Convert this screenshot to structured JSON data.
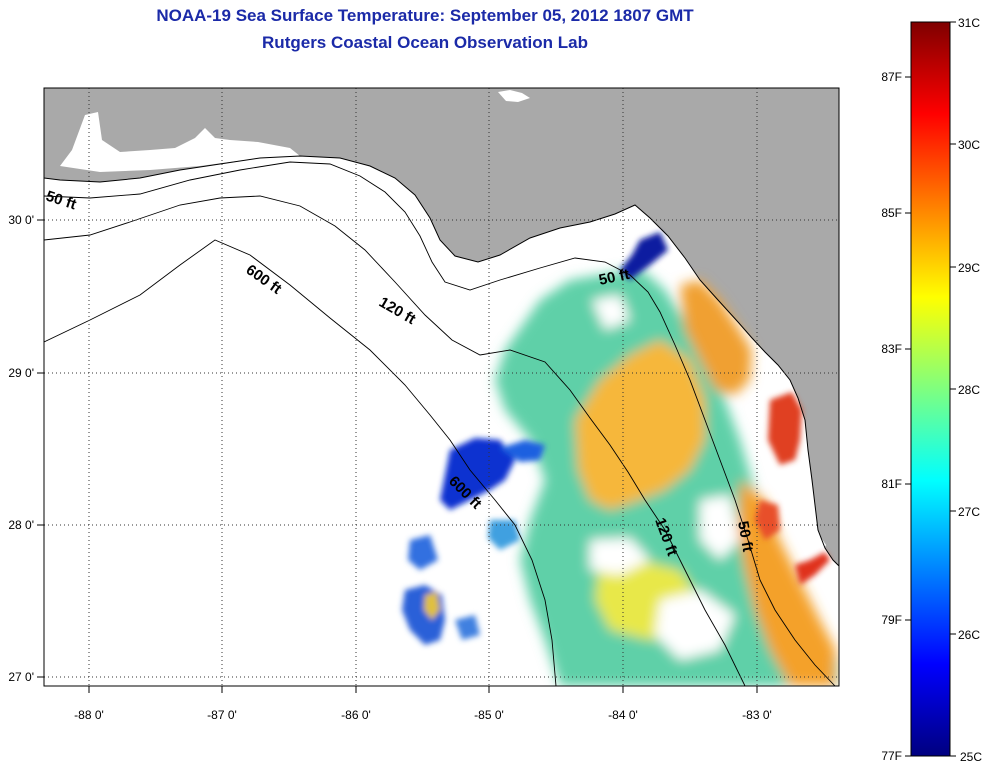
{
  "header": {
    "title": "NOAA-19 Sea Surface Temperature:  September 05, 2012 1807 GMT",
    "subtitle": "Rutgers Coastal Ocean Observation Lab"
  },
  "map": {
    "lon_labels": [
      "-88 0'",
      "-87 0'",
      "-86 0'",
      "-85 0'",
      "-84 0'",
      "-83 0'"
    ],
    "lat_labels": [
      "30 0'",
      "29 0'",
      "28 0'",
      "27 0'"
    ],
    "contour_labels": [
      "50 ft",
      "600 ft",
      "120 ft",
      "50 ft",
      "600 ft",
      "120 ft",
      "50 ft"
    ],
    "colors": {
      "land": "#a9a9a9",
      "ocean_no_data": "#ffffff",
      "coast": "#000000"
    }
  },
  "colorbar": {
    "celsius_labels": [
      "31C",
      "30C",
      "29C",
      "28C",
      "27C",
      "26C",
      "25C"
    ],
    "fahrenheit_labels": [
      "87F",
      "85F",
      "83F",
      "81F",
      "79F",
      "77F"
    ],
    "stops": [
      "#00007f",
      "#0000ff",
      "#007fff",
      "#00ffff",
      "#7fff7f",
      "#ffff00",
      "#ff7f00",
      "#ff0000",
      "#7f0000"
    ]
  }
}
